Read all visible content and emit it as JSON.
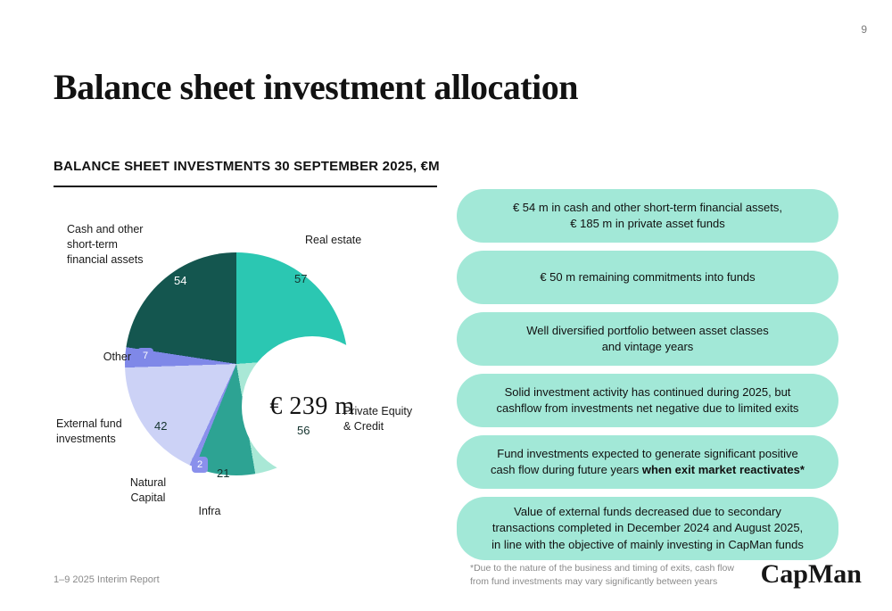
{
  "page_number": "9",
  "title": "Balance sheet investment allocation",
  "section_heading": "BALANCE SHEET INVESTMENTS 30 SEPTEMBER 2025, €M",
  "chart_data": {
    "type": "pie",
    "subtype": "donut",
    "title": "BALANCE SHEET INVESTMENTS 30 SEPTEMBER 2025, €M",
    "center_label": "€ 239 m",
    "total": 239,
    "unit": "€M",
    "start_angle_deg": 0,
    "direction": "clockwise",
    "segments": [
      {
        "label": "Real estate",
        "value": 57,
        "color": "#2bc7b2"
      },
      {
        "label": "Private Equity & Credit",
        "value": 56,
        "color": "#a9e8d6"
      },
      {
        "label": "Infra",
        "value": 21,
        "color": "#2da393"
      },
      {
        "label": "Natural Capital",
        "value": 2,
        "color": "#8a90ec"
      },
      {
        "label": "External fund investments",
        "value": 42,
        "color": "#ccd2f6"
      },
      {
        "label": "Other",
        "value": 7,
        "color": "#7f88e8"
      },
      {
        "label": "Cash and other short-term financial assets",
        "value": 54,
        "color": "#14564f"
      }
    ]
  },
  "cards": [
    {
      "line1": "€ 54 m in cash and other short-term financial assets,",
      "line2": "€ 185 m in private asset funds"
    },
    {
      "line1": "€ 50 m remaining commitments into funds"
    },
    {
      "line1": "Well diversified portfolio between asset classes",
      "line2": "and vintage years"
    },
    {
      "line1": "Solid investment activity has continued during 2025, but",
      "line2": "cashflow from investments net negative due to limited exits"
    },
    {
      "line1": "Fund investments expected to generate significant positive",
      "line2": "cash flow during future years ",
      "line2_bold": "when exit market reactivates*"
    },
    {
      "line1": "Value of external funds decreased due to secondary",
      "line2": "transactions completed in December 2024 and August 2025,",
      "line3": "in line with the objective of mainly investing in CapMan funds"
    }
  ],
  "footnote": {
    "line1": "*Due to the nature of the business and timing of exits, cash flow",
    "line2": "from fund investments may vary significantly between years"
  },
  "footer": {
    "report_label": "1–9 2025 Interim Report"
  },
  "logo_text": "CapMan",
  "colors": {
    "card_bg": "#a2e8d7",
    "dark_teal": "#14564f",
    "turquoise": "#2bc7b2",
    "mint": "#a9e8d6",
    "teal": "#2da393",
    "periwinkle": "#7f88e8",
    "light_periwinkle": "#ccd2f6"
  }
}
